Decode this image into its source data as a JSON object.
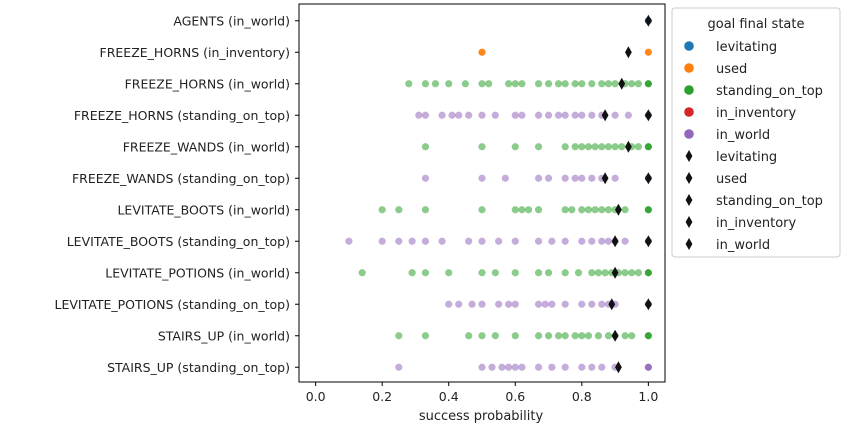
{
  "chart_data": {
    "type": "scatter",
    "xlabel": "success probability",
    "xlim": [
      -0.05,
      1.05
    ],
    "xticks": [
      "0.0",
      "0.2",
      "0.4",
      "0.6",
      "0.8",
      "1.0"
    ],
    "categories": [
      "AGENTS (in_world)",
      "FREEZE_HORNS (in_inventory)",
      "FREEZE_HORNS (in_world)",
      "FREEZE_HORNS (standing_on_top)",
      "FREEZE_WANDS (in_world)",
      "FREEZE_WANDS (standing_on_top)",
      "LEVITATE_BOOTS (in_world)",
      "LEVITATE_BOOTS (standing_on_top)",
      "LEVITATE_POTIONS (in_world)",
      "LEVITATE_POTIONS (standing_on_top)",
      "STAIRS_UP (in_world)",
      "STAIRS_UP (standing_on_top)"
    ],
    "legend": {
      "title": "goal final state",
      "position": "top-right outside",
      "dot_entries": [
        {
          "label": "levitating",
          "color": "#1f77b4"
        },
        {
          "label": "used",
          "color": "#ff7f0e"
        },
        {
          "label": "standing_on_top",
          "color": "#2ca02c"
        },
        {
          "label": "in_inventory",
          "color": "#d62728"
        },
        {
          "label": "in_world",
          "color": "#9467bd"
        }
      ],
      "marker_entries": [
        "levitating",
        "used",
        "standing_on_top",
        "in_inventory",
        "in_world"
      ],
      "marker_color": "#111111"
    },
    "points": [
      {
        "row": 0,
        "color": "#1f77b4",
        "x": [
          1.0
        ]
      },
      {
        "row": 1,
        "color": "#ff7f0e",
        "x": [
          0.5,
          1.0
        ]
      },
      {
        "row": 2,
        "color": "#2ca02c",
        "x": [
          0.28,
          0.33,
          0.36,
          0.4,
          0.45,
          0.5,
          0.52,
          0.58,
          0.6,
          0.62,
          0.67,
          0.7,
          0.73,
          0.75,
          0.78,
          0.8,
          0.83,
          0.86,
          0.88,
          0.9,
          0.93,
          0.95,
          0.97,
          1.0
        ]
      },
      {
        "row": 3,
        "color": "#9467bd",
        "x": [
          0.31,
          0.33,
          0.38,
          0.41,
          0.43,
          0.46,
          0.5,
          0.54,
          0.6,
          0.62,
          0.67,
          0.7,
          0.73,
          0.75,
          0.78,
          0.8,
          0.83,
          0.86,
          0.9,
          0.94,
          1.0
        ]
      },
      {
        "row": 4,
        "color": "#2ca02c",
        "x": [
          0.33,
          0.5,
          0.6,
          0.67,
          0.75,
          0.78,
          0.8,
          0.82,
          0.84,
          0.86,
          0.88,
          0.9,
          0.92,
          0.95,
          0.97,
          1.0
        ]
      },
      {
        "row": 5,
        "color": "#9467bd",
        "x": [
          0.33,
          0.5,
          0.57,
          0.67,
          0.7,
          0.75,
          0.78,
          0.8,
          0.83,
          0.86,
          0.9,
          1.0
        ]
      },
      {
        "row": 6,
        "color": "#2ca02c",
        "x": [
          0.2,
          0.25,
          0.33,
          0.5,
          0.6,
          0.62,
          0.64,
          0.67,
          0.75,
          0.77,
          0.8,
          0.82,
          0.84,
          0.86,
          0.88,
          0.9,
          0.93,
          1.0
        ]
      },
      {
        "row": 7,
        "color": "#9467bd",
        "x": [
          0.1,
          0.2,
          0.25,
          0.29,
          0.33,
          0.38,
          0.46,
          0.5,
          0.55,
          0.6,
          0.67,
          0.71,
          0.75,
          0.8,
          0.83,
          0.86,
          0.88,
          0.9,
          0.93,
          1.0
        ]
      },
      {
        "row": 8,
        "color": "#2ca02c",
        "x": [
          0.14,
          0.29,
          0.33,
          0.4,
          0.5,
          0.54,
          0.6,
          0.67,
          0.7,
          0.75,
          0.79,
          0.83,
          0.85,
          0.87,
          0.89,
          0.91,
          0.93,
          0.95,
          0.97,
          1.0
        ]
      },
      {
        "row": 9,
        "color": "#9467bd",
        "x": [
          0.4,
          0.43,
          0.47,
          0.5,
          0.55,
          0.58,
          0.6,
          0.67,
          0.69,
          0.71,
          0.75,
          0.8,
          0.83,
          0.86,
          0.88,
          0.9,
          1.0
        ]
      },
      {
        "row": 10,
        "color": "#2ca02c",
        "x": [
          0.25,
          0.33,
          0.46,
          0.5,
          0.54,
          0.6,
          0.67,
          0.7,
          0.73,
          0.75,
          0.78,
          0.8,
          0.82,
          0.85,
          0.88,
          0.9,
          0.93,
          0.95,
          1.0
        ]
      },
      {
        "row": 11,
        "color": "#9467bd",
        "x": [
          0.25,
          0.5,
          0.53,
          0.56,
          0.58,
          0.6,
          0.62,
          0.67,
          0.71,
          0.75,
          0.8,
          0.83,
          0.86,
          0.9,
          1.0
        ]
      }
    ],
    "means": [
      {
        "row": 0,
        "x": 1.0
      },
      {
        "row": 1,
        "x": 0.94
      },
      {
        "row": 2,
        "x": 0.92
      },
      {
        "row": 3,
        "x": 0.87
      },
      {
        "row": 3,
        "x": 1.0
      },
      {
        "row": 4,
        "x": 0.94
      },
      {
        "row": 5,
        "x": 0.87
      },
      {
        "row": 5,
        "x": 1.0
      },
      {
        "row": 6,
        "x": 0.91
      },
      {
        "row": 7,
        "x": 0.9
      },
      {
        "row": 7,
        "x": 1.0
      },
      {
        "row": 8,
        "x": 0.9
      },
      {
        "row": 9,
        "x": 0.89
      },
      {
        "row": 9,
        "x": 1.0
      },
      {
        "row": 10,
        "x": 0.9
      },
      {
        "row": 11,
        "x": 0.91
      }
    ]
  }
}
